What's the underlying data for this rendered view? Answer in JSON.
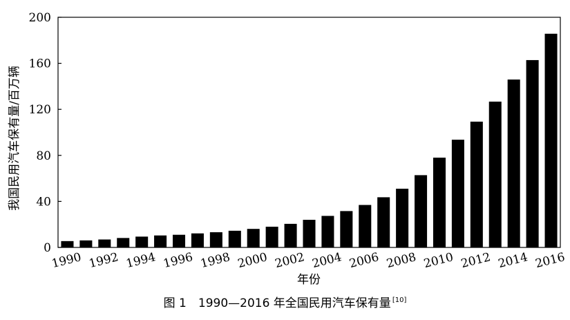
{
  "chart_data": {
    "type": "bar",
    "categories": [
      "1990",
      "1991",
      "1992",
      "1993",
      "1994",
      "1995",
      "1996",
      "1997",
      "1998",
      "1999",
      "2000",
      "2001",
      "2002",
      "2003",
      "2004",
      "2005",
      "2006",
      "2007",
      "2008",
      "2009",
      "2010",
      "2011",
      "2012",
      "2013",
      "2014",
      "2015",
      "2016"
    ],
    "x_tick_labels": [
      "1990",
      "1992",
      "1994",
      "1996",
      "1998",
      "2000",
      "2002",
      "2004",
      "2006",
      "2008",
      "2010",
      "2012",
      "2014",
      "2016"
    ],
    "values": [
      5.5,
      6.1,
      6.9,
      8.2,
      9.4,
      10.4,
      11.0,
      12.2,
      13.2,
      14.5,
      16.1,
      18.0,
      20.5,
      24.0,
      27.4,
      31.6,
      36.9,
      43.6,
      51.0,
      62.8,
      78.0,
      93.6,
      109.3,
      126.7,
      145.9,
      162.8,
      185.7
    ],
    "xlabel": "年份",
    "ylabel": "我国民用汽车保有量/百万辆",
    "ylim": [
      0,
      200
    ],
    "yticks": [
      0,
      40,
      80,
      120,
      160,
      200
    ],
    "grid": false,
    "bar_color": "#000000"
  },
  "caption": {
    "text": "图 1　1990—2016 年全国民用汽车保有量",
    "ref": "[10]"
  }
}
